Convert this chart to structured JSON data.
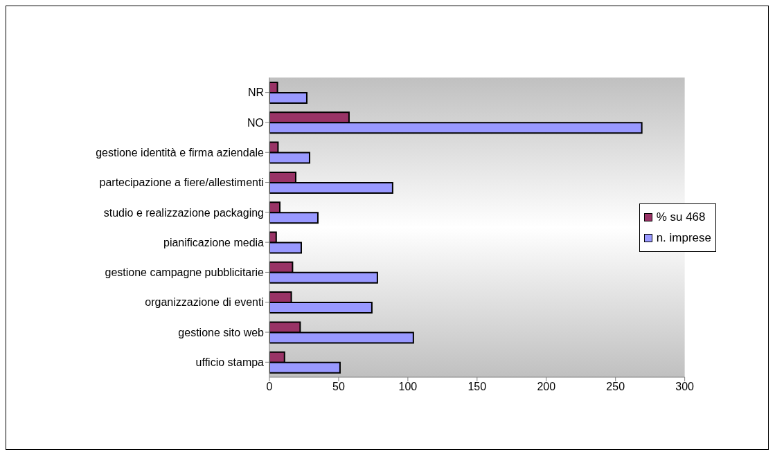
{
  "chart_data": {
    "type": "bar",
    "orientation": "horizontal",
    "categories": [
      "NR",
      "NO",
      "gestione identità e firma aziendale",
      "partecipazione a fiere/allestimenti",
      "studio e realizzazione packaging",
      "pianificazione media",
      "gestione campagne pubblicitarie",
      "organizzazione di eventi",
      "gestione sito web",
      "ufficio stampa"
    ],
    "series": [
      {
        "name": "% su 468",
        "color": "#993366",
        "values": [
          5.8,
          57.5,
          6.2,
          19.0,
          7.5,
          4.9,
          16.7,
          15.8,
          22.2,
          10.9
        ]
      },
      {
        "name": "n. imprese",
        "color": "#9999ff",
        "values": [
          27,
          269,
          29,
          89,
          35,
          23,
          78,
          74,
          104,
          51
        ]
      }
    ],
    "xlim": [
      0,
      300
    ],
    "xticks": [
      0,
      50,
      100,
      150,
      200,
      250,
      300
    ],
    "legend": "right",
    "grid": false
  }
}
